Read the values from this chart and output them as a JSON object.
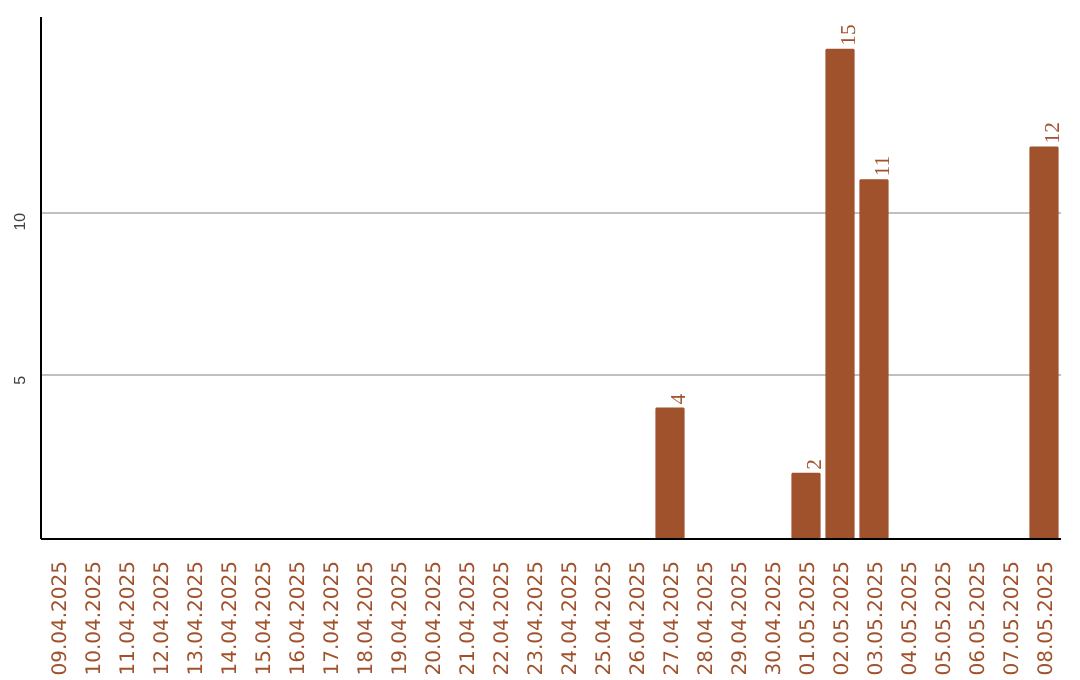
{
  "chart_data": {
    "type": "bar",
    "categories": [
      "09.04.2025",
      "10.04.2025",
      "11.04.2025",
      "12.04.2025",
      "13.04.2025",
      "14.04.2025",
      "15.04.2025",
      "16.04.2025",
      "17.04.2025",
      "18.04.2025",
      "19.04.2025",
      "20.04.2025",
      "21.04.2025",
      "22.04.2025",
      "23.04.2025",
      "24.04.2025",
      "25.04.2025",
      "26.04.2025",
      "27.04.2025",
      "28.04.2025",
      "29.04.2025",
      "30.04.2025",
      "01.05.2025",
      "02.05.2025",
      "03.05.2025",
      "04.05.2025",
      "05.05.2025",
      "06.05.2025",
      "07.05.2025",
      "08.05.2025"
    ],
    "values": [
      0,
      0,
      0,
      0,
      0,
      0,
      0,
      0,
      0,
      0,
      0,
      0,
      0,
      0,
      0,
      0,
      0,
      0,
      4,
      0,
      0,
      0,
      2,
      15,
      11,
      0,
      0,
      0,
      0,
      12
    ],
    "value_labels": [
      null,
      null,
      null,
      null,
      null,
      null,
      null,
      null,
      null,
      null,
      null,
      null,
      null,
      null,
      null,
      null,
      null,
      null,
      "4",
      null,
      null,
      null,
      "2",
      "15",
      "11",
      null,
      null,
      null,
      null,
      "12"
    ],
    "color": "#a0522d",
    "ylim": [
      0,
      16
    ],
    "yticks": [
      5,
      10
    ],
    "grid": "y"
  }
}
